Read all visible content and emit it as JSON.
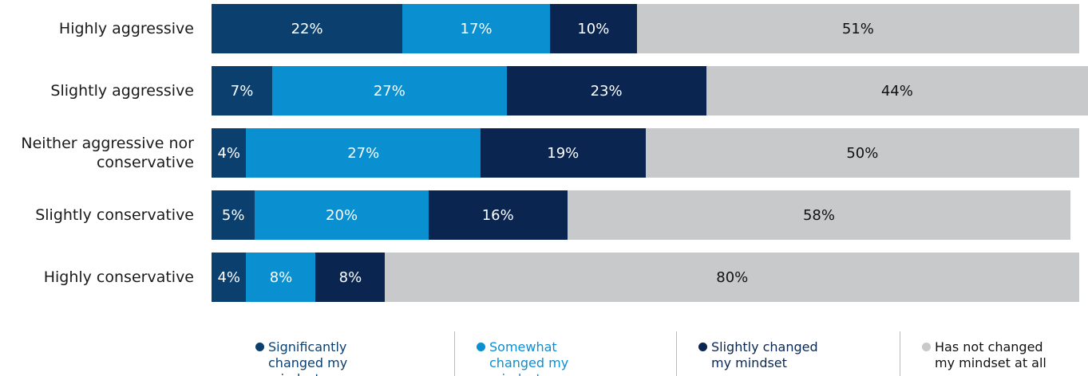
{
  "chart_data": {
    "type": "stacked-bar-horizontal",
    "categories": [
      "Highly aggressive",
      "Slightly aggressive",
      "Neither aggressive nor conservative",
      "Slightly conservative",
      "Highly conservative"
    ],
    "series": [
      {
        "name": "Significantly changed my mindset",
        "color": "#0b3f6e",
        "label_color": "#ffffff",
        "values": [
          22,
          7,
          4,
          5,
          4
        ],
        "value_labels": [
          "22%",
          "7%",
          "4%",
          "5%",
          "4%"
        ]
      },
      {
        "name": "Somewhat changed my mindset",
        "color": "#0a8fd0",
        "label_color": "#ffffff",
        "values": [
          17,
          27,
          27,
          20,
          8
        ],
        "value_labels": [
          "17%",
          "27%",
          "27%",
          "20%",
          "8%"
        ]
      },
      {
        "name": "Slightly changed my mindset",
        "color": "#0a2650",
        "label_color": "#ffffff",
        "values": [
          10,
          23,
          19,
          16,
          8
        ],
        "value_labels": [
          "10%",
          "23%",
          "19%",
          "16%",
          "8%"
        ]
      },
      {
        "name": "Has not changed my mindset at all",
        "color": "#c8c9cb",
        "label_color": "#111111",
        "values": [
          51,
          44,
          50,
          58,
          80
        ],
        "value_labels": [
          "51%",
          "44%",
          "50%",
          "58%",
          "80%"
        ]
      }
    ],
    "legend_text_colors": [
      "#0b3f6e",
      "#0a8fd0",
      "#0a2650",
      "#111111"
    ],
    "legend_position": "bottom"
  }
}
